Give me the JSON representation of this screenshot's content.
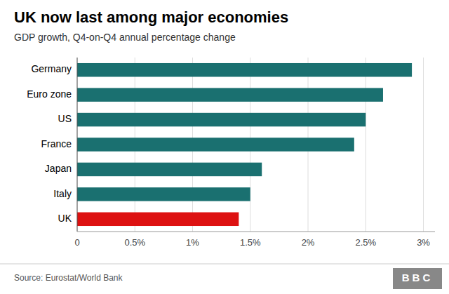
{
  "chart_data": {
    "type": "bar",
    "orientation": "horizontal",
    "title": "UK now last among major economies",
    "subtitle": "GDP growth, Q4-on-Q4 annual percentage change",
    "annotations": [
      "Source: Eurostat/World Bank",
      "BBC"
    ],
    "categories": [
      "Germany",
      "Euro zone",
      "US",
      "France",
      "Japan",
      "Italy",
      "UK"
    ],
    "values": [
      2.9,
      2.65,
      2.5,
      2.4,
      1.6,
      1.5,
      1.4
    ],
    "colors": [
      "#1a7070",
      "#1a7070",
      "#1a7070",
      "#1a7070",
      "#1a7070",
      "#1a7070",
      "#dd1111"
    ],
    "xlim": [
      0,
      3.1
    ],
    "xticks": [
      0,
      {
        "value": 0.5,
        "label": "0.5%"
      },
      {
        "value": 1.0,
        "label": "1%"
      },
      {
        "value": 1.5,
        "label": "1.5%"
      },
      {
        "value": 2.0,
        "label": "2%"
      },
      {
        "value": 2.5,
        "label": "2.5%"
      },
      {
        "value": 3.0,
        "label": "3%"
      }
    ],
    "grid": true
  }
}
